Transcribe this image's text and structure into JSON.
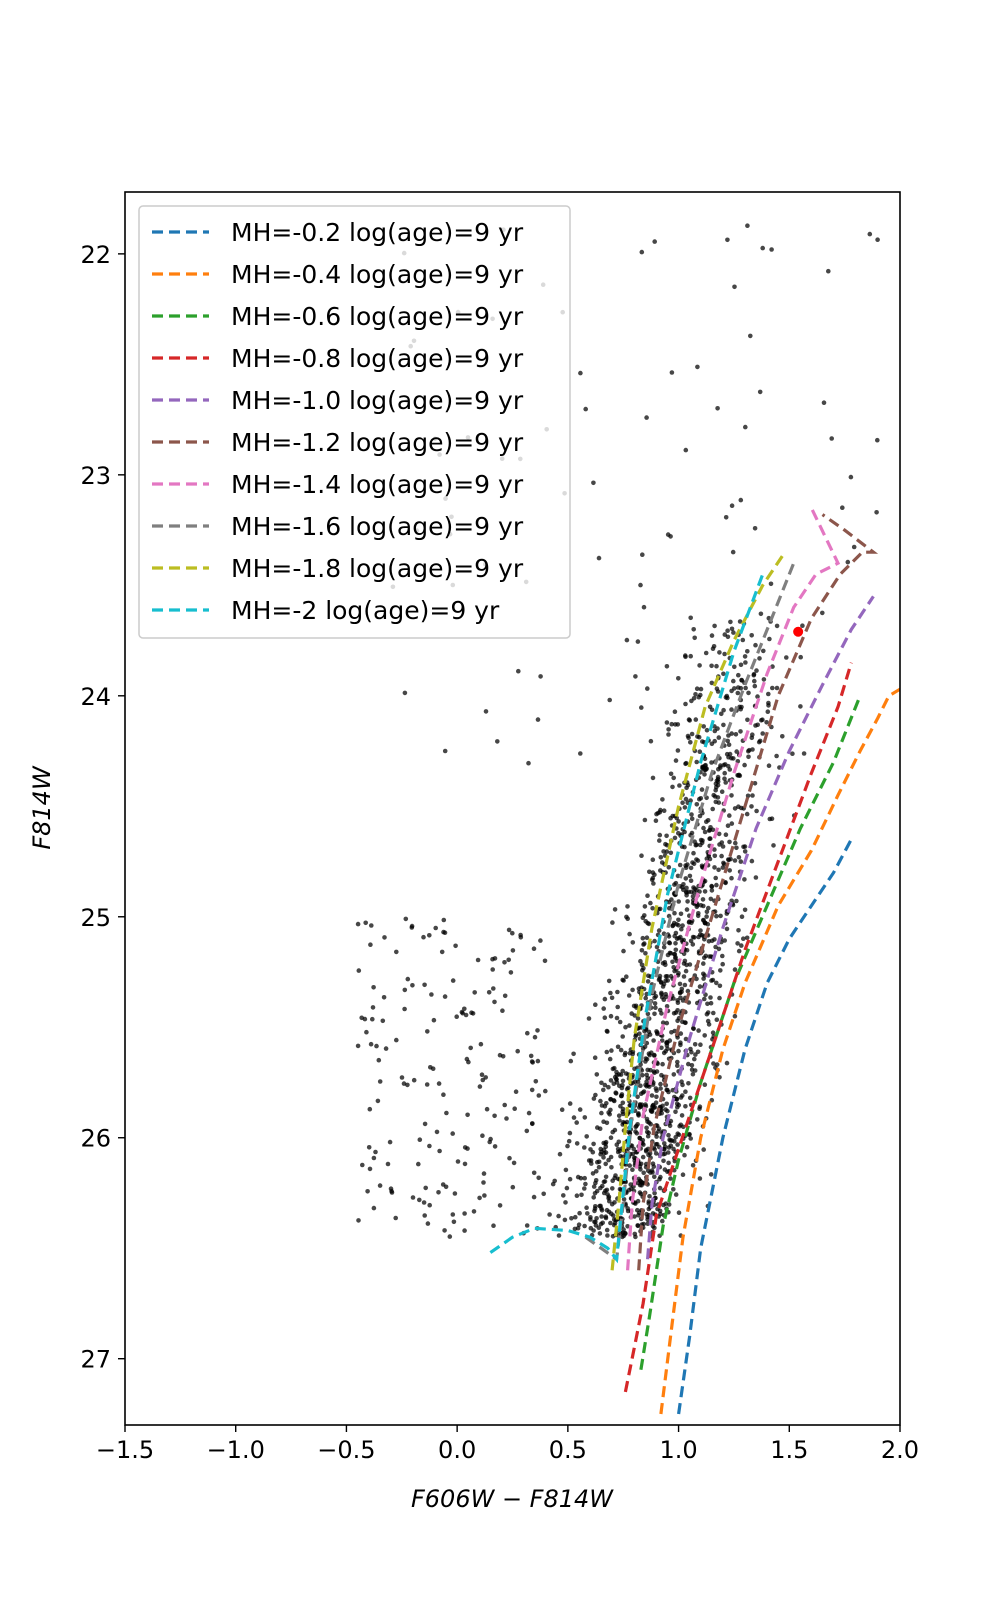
{
  "chart_data": {
    "type": "scatter",
    "title": "",
    "xlabel": "F606W − F814W",
    "ylabel": "F814W",
    "xlim": [
      -1.5,
      2.0
    ],
    "ylim": [
      27.3,
      21.72
    ],
    "y_inverted": true,
    "grid": false,
    "legend_position": "top-left",
    "xticks": [
      -1.5,
      -1.0,
      -0.5,
      0.0,
      0.5,
      1.0,
      1.5,
      2.0
    ],
    "xtick_labels": [
      "−1.5",
      "−1.0",
      "−0.5",
      "0.0",
      "0.5",
      "1.0",
      "1.5",
      "2.0"
    ],
    "yticks": [
      22,
      23,
      24,
      25,
      26,
      27
    ],
    "ytick_labels": [
      "22",
      "23",
      "24",
      "25",
      "26",
      "27"
    ],
    "highlight_point": {
      "x": 1.54,
      "y": 23.71,
      "color": "#ff0000"
    },
    "scatter_color": "#000000",
    "isochrones": [
      {
        "name": "MH=-0.2 log(age)=9 yr",
        "color": "#1f77b4",
        "x": [
          1.0,
          1.05,
          1.1,
          1.15,
          1.2,
          1.3,
          1.4,
          1.5,
          1.6,
          1.7,
          1.78
        ],
        "y": [
          27.25,
          26.9,
          26.5,
          26.25,
          26.0,
          25.6,
          25.3,
          25.1,
          24.95,
          24.8,
          24.65
        ]
      },
      {
        "name": "MH=-0.4 log(age)=9 yr",
        "color": "#ff7f0e",
        "x": [
          0.92,
          0.97,
          1.02,
          1.1,
          1.2,
          1.3,
          1.45,
          1.6,
          1.72,
          1.82,
          1.9,
          1.95,
          2.0
        ],
        "y": [
          27.25,
          26.85,
          26.45,
          26.0,
          25.6,
          25.3,
          24.95,
          24.7,
          24.45,
          24.25,
          24.1,
          24.0,
          23.97
        ]
      },
      {
        "name": "MH=-0.6 log(age)=9 yr",
        "color": "#2ca02c",
        "x": [
          0.83,
          0.87,
          0.93,
          1.0,
          1.1,
          1.25,
          1.4,
          1.55,
          1.7,
          1.82
        ],
        "y": [
          27.05,
          26.8,
          26.4,
          26.1,
          25.75,
          25.3,
          24.95,
          24.6,
          24.3,
          24.0
        ]
      },
      {
        "name": "MH=-0.8 log(age)=9 yr",
        "color": "#d62728",
        "x": [
          0.76,
          0.8,
          0.84,
          0.9,
          1.0,
          1.15,
          1.3,
          1.45,
          1.6,
          1.72,
          1.78
        ],
        "y": [
          27.15,
          26.95,
          26.75,
          26.35,
          26.05,
          25.6,
          25.15,
          24.75,
          24.35,
          24.05,
          23.85
        ]
      },
      {
        "name": "MH=-1.0 log(age)=9 yr",
        "color": "#9467bd",
        "x": [
          0.86,
          0.88,
          0.93,
          1.05,
          1.2,
          1.35,
          1.5,
          1.65,
          1.78,
          1.88
        ],
        "y": [
          26.55,
          26.3,
          26.0,
          25.55,
          25.05,
          24.6,
          24.25,
          23.95,
          23.7,
          23.55
        ]
      },
      {
        "name": "MH=-1.2 log(age)=9 yr",
        "color": "#8c564b",
        "x": [
          0.82,
          0.84,
          0.89,
          1.0,
          1.15,
          1.3,
          1.45,
          1.6,
          1.73,
          1.83,
          1.88,
          1.75,
          1.65
        ],
        "y": [
          26.6,
          26.3,
          25.95,
          25.5,
          25.0,
          24.5,
          24.0,
          23.65,
          23.45,
          23.35,
          23.35,
          23.25,
          23.18
        ]
      },
      {
        "name": "MH=-1.4 log(age)=9 yr",
        "color": "#e377c2",
        "x": [
          0.77,
          0.79,
          0.84,
          0.95,
          1.1,
          1.25,
          1.4,
          1.52,
          1.62,
          1.72,
          1.6
        ],
        "y": [
          26.6,
          26.3,
          25.9,
          25.4,
          24.85,
          24.35,
          23.9,
          23.6,
          23.45,
          23.4,
          23.15
        ]
      },
      {
        "name": "MH=-1.6 log(age)=9 yr",
        "color": "#7f7f7f",
        "x": [
          0.58,
          0.65,
          0.72,
          0.75,
          0.79,
          0.88,
          1.0,
          1.15,
          1.3,
          1.42,
          1.52
        ],
        "y": [
          26.45,
          26.5,
          26.55,
          26.3,
          25.9,
          25.35,
          24.85,
          24.35,
          23.95,
          23.65,
          23.4
        ]
      },
      {
        "name": "MH=-1.8 log(age)=9 yr",
        "color": "#bcbd22",
        "x": [
          0.7,
          0.73,
          0.76,
          0.8,
          0.88,
          1.0,
          1.12,
          1.25,
          1.38,
          1.48
        ],
        "y": [
          26.6,
          26.3,
          25.95,
          25.55,
          25.05,
          24.5,
          24.05,
          23.75,
          23.5,
          23.35
        ]
      },
      {
        "name": "MH=-2 log(age)=9 yr",
        "color": "#17becf",
        "x": [
          0.15,
          0.25,
          0.35,
          0.5,
          0.6,
          0.68,
          0.72,
          0.74,
          0.78,
          0.85,
          0.95,
          1.1,
          1.25,
          1.38
        ],
        "y": [
          26.52,
          26.45,
          26.41,
          26.42,
          26.45,
          26.5,
          26.55,
          26.35,
          25.95,
          25.45,
          24.9,
          24.3,
          23.8,
          23.45
        ]
      }
    ]
  }
}
